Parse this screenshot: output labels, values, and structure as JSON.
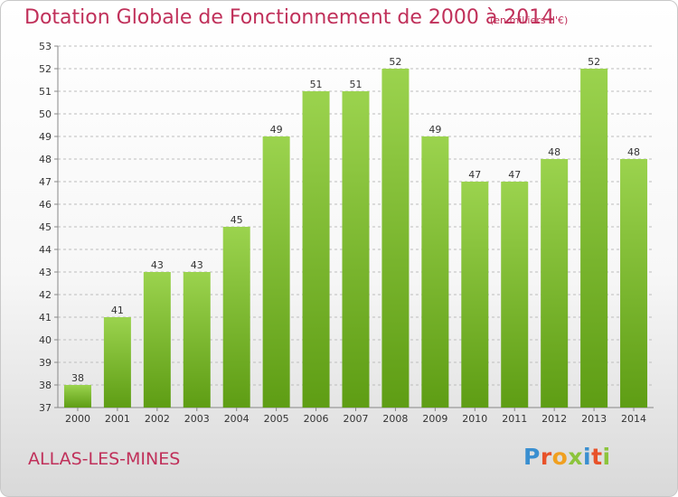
{
  "header": {
    "title": "Dotation Globale de Fonctionnement de 2000 à 2014",
    "unit_note": "(en milliers d'€)"
  },
  "footer": {
    "commune": "ALLAS-LES-MINES",
    "logo_letters": [
      {
        "ch": "P",
        "color": "#3a8fd0"
      },
      {
        "ch": "r",
        "color": "#e8522a"
      },
      {
        "ch": "o",
        "color": "#f0a020"
      },
      {
        "ch": "x",
        "color": "#8cc43c"
      },
      {
        "ch": "i",
        "color": "#3a8fd0"
      },
      {
        "ch": "t",
        "color": "#e8522a"
      },
      {
        "ch": "i",
        "color": "#8cc43c"
      }
    ]
  },
  "chart_data": {
    "type": "bar",
    "categories": [
      "2000",
      "2001",
      "2002",
      "2003",
      "2004",
      "2005",
      "2006",
      "2007",
      "2008",
      "2009",
      "2010",
      "2011",
      "2012",
      "2013",
      "2014"
    ],
    "values": [
      38,
      41,
      43,
      43,
      45,
      49,
      51,
      51,
      52,
      49,
      47,
      47,
      48,
      52,
      48
    ],
    "ylim": [
      37,
      53
    ],
    "yticks": [
      37,
      38,
      39,
      40,
      41,
      42,
      43,
      44,
      45,
      46,
      47,
      48,
      49,
      50,
      51,
      52,
      53
    ],
    "grid": "horizontal dashed",
    "bar_color_top": "#9bd34e",
    "bar_color_bottom": "#5e9d14",
    "legend": "none"
  }
}
